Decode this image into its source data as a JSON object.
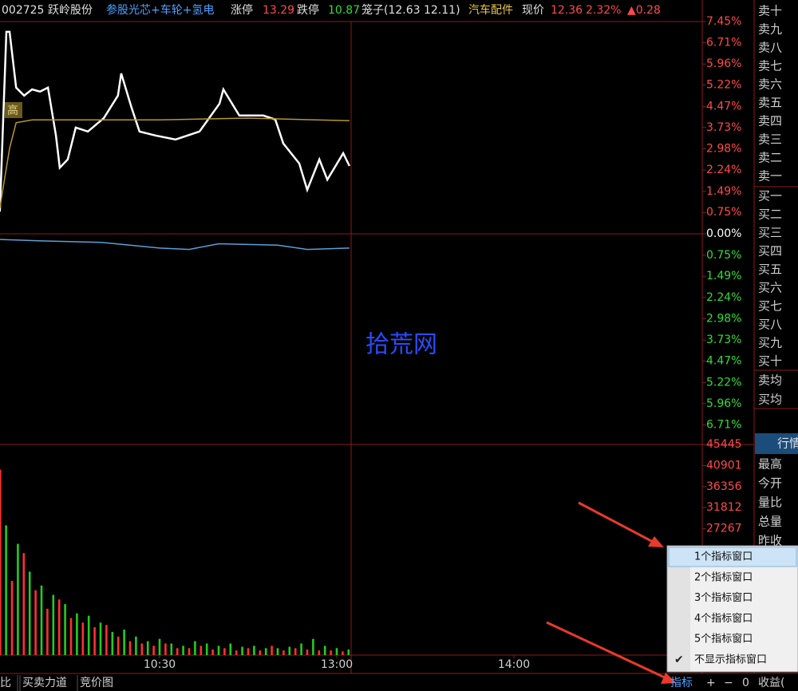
{
  "header": {
    "code": "002725",
    "name": "跃岭股份",
    "concept": "参股光芯+车轮+氢电",
    "limit_up_label": "涨停",
    "limit_up": "13.29",
    "limit_down_label": "跌停",
    "limit_down": "10.87",
    "cage": "笼子(12.63 12.11)",
    "industry": "汽车配件",
    "price_label": "现价",
    "price": "12.36",
    "change_pct": "2.32%",
    "change": "▲0.28"
  },
  "high_marker": "高",
  "watermark": "拾荒网",
  "price_chart": {
    "type": "line",
    "xlim": [
      0,
      240
    ],
    "ylim": [
      -7.45,
      7.45
    ],
    "yticks": [
      {
        "value": 7.45,
        "label": "7.45%"
      },
      {
        "value": 6.71,
        "label": "6.71%"
      },
      {
        "value": 5.96,
        "label": "5.96%"
      },
      {
        "value": 5.22,
        "label": "5.22%"
      },
      {
        "value": 4.47,
        "label": "4.47%"
      },
      {
        "value": 3.73,
        "label": "3.73%"
      },
      {
        "value": 2.98,
        "label": "2.98%"
      },
      {
        "value": 2.24,
        "label": "2.24%"
      },
      {
        "value": 1.49,
        "label": "1.49%"
      },
      {
        "value": 0.75,
        "label": "0.75%"
      },
      {
        "value": 0,
        "label": "0.00%"
      },
      {
        "value": -0.75,
        "label": "0.75%"
      },
      {
        "value": -1.49,
        "label": "1.49%"
      },
      {
        "value": -2.24,
        "label": "2.24%"
      },
      {
        "value": -2.98,
        "label": "2.98%"
      },
      {
        "value": -3.73,
        "label": "3.73%"
      },
      {
        "value": -4.47,
        "label": "4.47%"
      },
      {
        "value": -5.22,
        "label": "5.22%"
      },
      {
        "value": -5.96,
        "label": "5.96%"
      },
      {
        "value": -6.71,
        "label": "6.71%"
      }
    ],
    "up_color": "#ff4a4a",
    "flat_color": "#ffffff",
    "down_color": "#33dd33",
    "series": [
      {
        "color": "#ffffff",
        "x": [
          5.9,
          8.1,
          9.2,
          11.4,
          14.1,
          16.8,
          19.5,
          22.2,
          24.9,
          26.2,
          28.9,
          31.6,
          35.7,
          41.1,
          45.9,
          47.0,
          50.5,
          53.2,
          58.6,
          65.4,
          73.5,
          80.3,
          81.6,
          87.0,
          95.1,
          99.2,
          101.9,
          107.3,
          110.0,
          114.1,
          116.8,
          122.2,
          124.3
        ],
        "values": [
          0.78,
          7.09,
          7.09,
          5.13,
          4.85,
          5.07,
          4.99,
          5.13,
          3.45,
          2.32,
          2.61,
          3.73,
          3.59,
          4.06,
          4.85,
          5.63,
          4.43,
          3.59,
          3.45,
          3.31,
          3.59,
          4.57,
          5.07,
          4.15,
          4.15,
          4.01,
          3.17,
          2.47,
          1.54,
          2.61,
          1.9,
          2.83,
          2.38
        ]
      },
      {
        "color": "#b8962e",
        "x": [
          5.9,
          9.2,
          11.4,
          16.8,
          30,
          60,
          90,
          124.3
        ],
        "values": [
          0.9,
          3.0,
          3.9,
          4.0,
          4.0,
          4.0,
          4.06,
          3.97
        ]
      },
      {
        "color": "#5aa0d8",
        "x": [
          5.9,
          20,
          40,
          60,
          70,
          80,
          100,
          110,
          124.3
        ],
        "values": [
          -0.2,
          -0.25,
          -0.3,
          -0.5,
          -0.55,
          -0.35,
          -0.4,
          -0.55,
          -0.5
        ]
      }
    ]
  },
  "volume_chart": {
    "type": "bar",
    "xlim": [
      0,
      240
    ],
    "xticks": [
      {
        "value": 60,
        "label": "10:30"
      },
      {
        "value": 120,
        "label": "13:00"
      },
      {
        "value": 180,
        "label": "14:00"
      }
    ],
    "ylim": [
      0,
      45445
    ],
    "yticks": [
      45445,
      40901,
      36356,
      31812,
      27267
    ],
    "series": [
      {
        "color": "#ff3030",
        "x": [
          6,
          10,
          14,
          18,
          22,
          26,
          30,
          34,
          38,
          42,
          46,
          50,
          54,
          58,
          62,
          66,
          70,
          74,
          78,
          82,
          86,
          90,
          94,
          98,
          102,
          106,
          110,
          114,
          118,
          122
        ],
        "values": [
          40000,
          16000,
          22000,
          14000,
          10000,
          12000,
          8000,
          7000,
          6000,
          6500,
          4000,
          3000,
          2500,
          2000,
          2500,
          1500,
          1500,
          2000,
          1200,
          1500,
          1000,
          1500,
          1000,
          2000,
          1000,
          1500,
          1200,
          1000,
          1000,
          800
        ]
      },
      {
        "color": "#22cc22",
        "x": [
          8,
          12,
          16,
          20,
          24,
          28,
          32,
          36,
          40,
          44,
          48,
          52,
          56,
          60,
          64,
          68,
          72,
          76,
          80,
          84,
          88,
          92,
          96,
          100,
          104,
          108,
          112,
          116,
          120,
          124
        ],
        "values": [
          28000,
          24000,
          18000,
          15000,
          13000,
          11000,
          9000,
          8500,
          7000,
          5000,
          5500,
          4000,
          3000,
          3500,
          2500,
          2000,
          3000,
          2500,
          2000,
          2500,
          1800,
          2000,
          1500,
          1500,
          1800,
          2500,
          3500,
          2000,
          1500,
          1200
        ]
      }
    ]
  },
  "order_book": {
    "sell": [
      "卖十",
      "卖九",
      "卖八",
      "卖七",
      "卖六",
      "卖五",
      "卖四",
      "卖三",
      "卖二",
      "卖一"
    ],
    "buy": [
      "买一",
      "买二",
      "买三",
      "买四",
      "买五",
      "买六",
      "买七",
      "买八",
      "买九",
      "买十"
    ],
    "avg": [
      "卖均",
      "买均"
    ]
  },
  "quote_panel": {
    "tab": "行情",
    "fields": [
      "最高",
      "今开",
      "量比",
      "总量",
      "昨收"
    ]
  },
  "bottom_tabs": [
    "比",
    "买卖力道",
    "竞价图"
  ],
  "bottom_right": [
    "指标",
    "+",
    "−",
    "0",
    "收益("
  ],
  "menu": {
    "items": [
      "1个指标窗口",
      "2个指标窗口",
      "3个指标窗口",
      "4个指标窗口",
      "5个指标窗口",
      "不显示指标窗口"
    ],
    "checked": 5,
    "selected": 0
  }
}
